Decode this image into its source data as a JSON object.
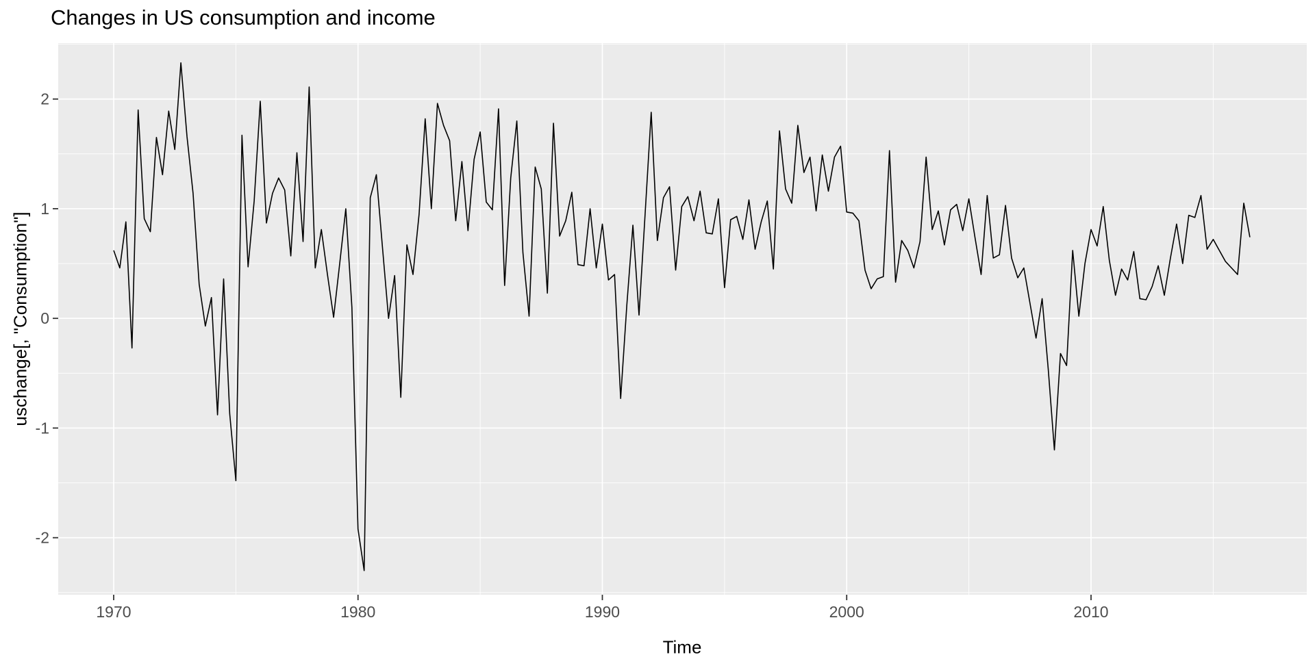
{
  "chart": {
    "title": "Changes in US consumption and income",
    "xlabel": "Time",
    "ylabel": "uschange[, \"Consumption\"]"
  },
  "chart_data": {
    "type": "line",
    "title": "Changes in US consumption and income",
    "xlabel": "Time",
    "ylabel": "uschange[, \"Consumption\"]",
    "series_name": "Consumption",
    "x_start": 1970.0,
    "x_step": 0.25,
    "xlim": [
      1967.73,
      2018.83
    ],
    "ylim": [
      -2.52,
      2.51
    ],
    "x_ticks": [
      1970,
      1980,
      1990,
      2000,
      2010
    ],
    "x_tick_labels": [
      "1970",
      "1980",
      "1990",
      "2000",
      "2010"
    ],
    "x_minor_ticks": [
      1975,
      1985,
      1995,
      2005,
      2015
    ],
    "y_ticks": [
      2,
      1,
      0,
      -1,
      -2
    ],
    "y_tick_labels": [
      "2",
      "1",
      "0",
      "-1",
      "-2"
    ],
    "y_minor_ticks": [
      2.5,
      1.5,
      0.5,
      -0.5,
      -1.5,
      -2.5
    ],
    "grid": true,
    "legend": "none",
    "colors": {
      "line": "#000000",
      "panel_bg": "#EBEBEB",
      "grid_major": "#FFFFFF",
      "grid_minor": "#FFFFFF",
      "tick_text": "#4D4D4D",
      "tick_mark": "#333333",
      "title_text": "#000000"
    },
    "values": [
      0.62,
      0.46,
      0.88,
      -0.27,
      1.9,
      0.91,
      0.79,
      1.65,
      1.31,
      1.89,
      1.54,
      2.33,
      1.66,
      1.14,
      0.31,
      -0.07,
      0.19,
      -0.88,
      0.36,
      -0.87,
      -1.48,
      1.67,
      0.47,
      1.07,
      1.98,
      0.87,
      1.14,
      1.28,
      1.17,
      0.57,
      1.51,
      0.7,
      2.11,
      0.46,
      0.81,
      0.4,
      0.01,
      0.5,
      1.0,
      0.1,
      -1.92,
      -2.3,
      1.1,
      1.31,
      0.65,
      0.0,
      0.39,
      -0.72,
      0.67,
      0.4,
      0.95,
      1.82,
      1.0,
      1.96,
      1.76,
      1.62,
      0.89,
      1.43,
      0.8,
      1.45,
      1.7,
      1.06,
      0.99,
      1.91,
      0.3,
      1.28,
      1.8,
      0.6,
      0.02,
      1.38,
      1.18,
      0.23,
      1.78,
      0.75,
      0.89,
      1.15,
      0.49,
      0.48,
      1.0,
      0.46,
      0.86,
      0.35,
      0.4,
      -0.73,
      0.12,
      0.85,
      0.03,
      0.95,
      1.88,
      0.71,
      1.1,
      1.2,
      0.44,
      1.02,
      1.11,
      0.89,
      1.16,
      0.78,
      0.77,
      1.09,
      0.28,
      0.9,
      0.93,
      0.72,
      1.08,
      0.63,
      0.88,
      1.07,
      0.45,
      1.71,
      1.18,
      1.05,
      1.76,
      1.33,
      1.47,
      0.98,
      1.49,
      1.16,
      1.47,
      1.57,
      0.97,
      0.96,
      0.89,
      0.44,
      0.27,
      0.36,
      0.38,
      1.53,
      0.33,
      0.71,
      0.62,
      0.46,
      0.7,
      1.47,
      0.81,
      0.98,
      0.67,
      0.99,
      1.04,
      0.8,
      1.09,
      0.74,
      0.4,
      1.12,
      0.55,
      0.58,
      1.03,
      0.55,
      0.37,
      0.46,
      0.14,
      -0.18,
      0.18,
      -0.47,
      -1.2,
      -0.32,
      -0.43,
      0.62,
      0.02,
      0.5,
      0.81,
      0.66,
      1.02,
      0.53,
      0.21,
      0.45,
      0.35,
      0.61,
      0.18,
      0.17,
      0.29,
      0.48,
      0.21,
      0.55,
      0.86,
      0.5,
      0.94,
      0.92,
      1.12,
      0.63,
      0.72,
      0.62,
      0.52,
      0.46,
      0.4,
      1.05,
      0.74
    ]
  }
}
